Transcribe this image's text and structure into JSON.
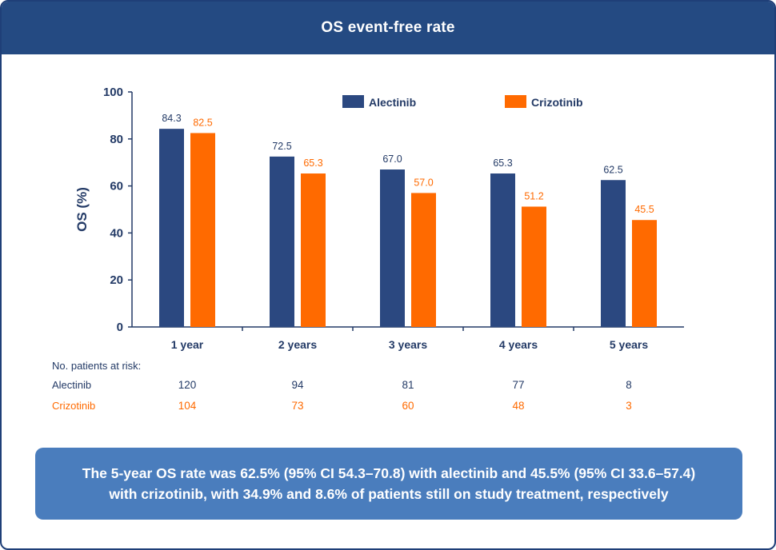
{
  "header": {
    "title": "OS event-free rate"
  },
  "colors": {
    "alectinib": "#2b4880",
    "crizotinib": "#ff6a00",
    "axis_text": "#233a66"
  },
  "chart_data": {
    "type": "bar",
    "title": "OS event-free rate",
    "ylabel": "OS (%)",
    "xlabel": "",
    "ylim": [
      0,
      100
    ],
    "yticks": [
      0,
      20,
      40,
      60,
      80,
      100
    ],
    "categories": [
      "1 year",
      "2 years",
      "3 years",
      "4 years",
      "5 years"
    ],
    "series": [
      {
        "name": "Alectinib",
        "values": [
          84.3,
          72.5,
          67.0,
          65.3,
          62.5
        ],
        "labels": [
          "84.3",
          "72.5",
          "67.0",
          "65.3",
          "62.5"
        ]
      },
      {
        "name": "Crizotinib",
        "values": [
          82.5,
          65.3,
          57.0,
          51.2,
          45.5
        ],
        "labels": [
          "82.5",
          "65.3",
          "57.0",
          "51.2",
          "45.5"
        ]
      }
    ],
    "legend": "top-right"
  },
  "risk_table": {
    "title": "No. patients at risk:",
    "rows": [
      {
        "name": "Alectinib",
        "values": [
          "120",
          "94",
          "81",
          "77",
          "8"
        ]
      },
      {
        "name": "Crizotinib",
        "values": [
          "104",
          "73",
          "60",
          "48",
          "3"
        ]
      }
    ]
  },
  "callout": {
    "line1": "The 5-year OS rate was 62.5% (95% CI 54.3–70.8) with alectinib and 45.5% (95% CI 33.6–57.4)",
    "line2": "with crizotinib, with 34.9% and 8.6% of patients still on study treatment, respectively"
  }
}
